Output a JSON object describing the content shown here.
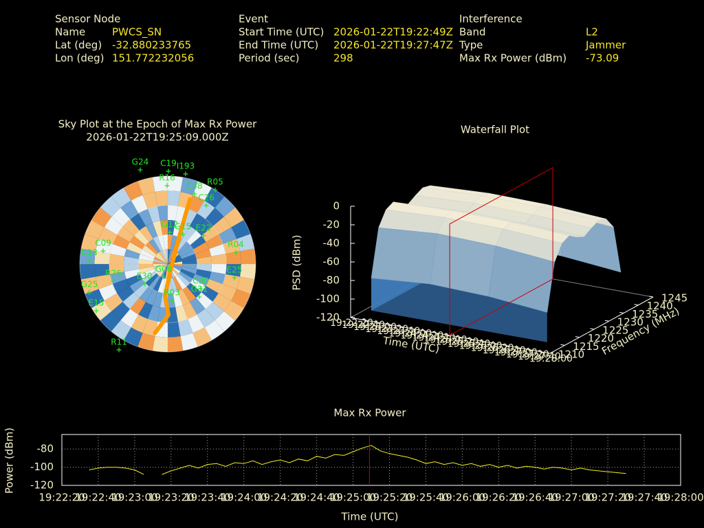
{
  "header": {
    "groups": [
      {
        "title": "Sensor Node",
        "rows": [
          [
            "Name",
            "PWCS_SN"
          ],
          [
            "Lat (deg)",
            "-32.880233765"
          ],
          [
            "Lon (deg)",
            "151.772232056"
          ]
        ]
      },
      {
        "title": "Event",
        "rows": [
          [
            "Start Time (UTC)",
            "2026-01-22T19:22:49Z"
          ],
          [
            "End Time (UTC)",
            "2026-01-22T19:27:47Z"
          ],
          [
            "Period (sec)",
            "298"
          ]
        ]
      },
      {
        "title": "Interference",
        "rows": [
          [
            "Band",
            "L2"
          ],
          [
            "Type",
            "Jammer"
          ],
          [
            "Max Rx Power (dBm)",
            "-73.09"
          ]
        ]
      }
    ]
  },
  "chart_data": [
    {
      "type": "polar",
      "title": "Sky Plot at the Epoch of Max Rx Power",
      "subtitle": "2026-01-22T19:25:09.000Z",
      "rlim": [
        90,
        0
      ],
      "label_color": "#22e622",
      "satellites": [
        {
          "name": "G24",
          "azimuth": 343.7,
          "elevation": -10.3
        },
        {
          "name": "C19",
          "azimuth": 0.4,
          "elevation": -4.9
        },
        {
          "name": "I193",
          "azimuth": 11.2,
          "elevation": -3.9
        },
        {
          "name": "R16",
          "azimuth": 359.5,
          "elevation": 9.8
        },
        {
          "name": "C48",
          "azimuth": 20.9,
          "elevation": 13.4
        },
        {
          "name": "R05",
          "azimuth": 32.6,
          "elevation": 0
        },
        {
          "name": "C26",
          "azimuth": 33.4,
          "elevation": 18.4
        },
        {
          "name": "E22",
          "azimuth": 51.7,
          "elevation": 43.4
        },
        {
          "name": "R04",
          "azimuth": 80.3,
          "elevation": 19.4
        },
        {
          "name": "E25",
          "azimuth": 101.7,
          "elevation": 20.4
        },
        {
          "name": "G12",
          "azimuth": 3.7,
          "elevation": 57.6
        },
        {
          "name": "G15",
          "azimuth": 27.1,
          "elevation": 56
        },
        {
          "name": "C09",
          "azimuth": 281.4,
          "elevation": 22.6
        },
        {
          "name": "C33",
          "azimuth": 272.5,
          "elevation": 9.8
        },
        {
          "name": "G25",
          "azimuth": 250.2,
          "elevation": 4.8
        },
        {
          "name": "E15",
          "azimuth": 236.8,
          "elevation": 2.6
        },
        {
          "name": "R11",
          "azimuth": 209.6,
          "elevation": -11
        },
        {
          "name": "G06",
          "azimuth": 197.5,
          "elevation": 76
        },
        {
          "name": "R03",
          "azimuth": 173.5,
          "elevation": 52.5
        },
        {
          "name": "G31",
          "azimuth": 136.2,
          "elevation": 43.3
        },
        {
          "name": "C30",
          "azimuth": 126.9,
          "elevation": 47.8
        },
        {
          "name": "R26",
          "azimuth": 252.4,
          "elevation": 31.7
        },
        {
          "name": "E30",
          "azimuth": 229.5,
          "elevation": 58.6
        }
      ],
      "track": {
        "color": "#ff9900",
        "azimuth": [
          19,
          19.9,
          22.2,
          99.5,
          185,
          179.2,
          190.6
        ],
        "elevation": [
          20,
          38.4,
          56.6,
          85.7,
          57.5,
          38,
          18
        ]
      }
    },
    {
      "type": "surface",
      "title": "Waterfall Plot",
      "xlabel": "Time (UTC)",
      "ylabel": "Frequency (MHz)",
      "zlabel": "PSD (dBm)",
      "x": [
        69750,
        69850,
        69950,
        70050
      ],
      "y": [
        1215,
        1217.5,
        1220,
        1222.5,
        1225,
        1227.5,
        1230,
        1232.5,
        1235,
        1237.5,
        1240
      ],
      "values": [
        [
          -85,
          -35,
          -20,
          -16,
          -22,
          -27,
          -22,
          -18,
          -20,
          -32,
          -85
        ],
        [
          -80,
          -30,
          -17,
          -14,
          -19,
          -24,
          -19,
          -15,
          -17,
          -28,
          -80
        ],
        [
          -82,
          -32,
          -18,
          -15,
          -20,
          -25,
          -20,
          -16,
          -18,
          -30,
          -82
        ],
        [
          -88,
          -38,
          -22,
          -18,
          -24,
          -28,
          -23,
          -19,
          -22,
          -35,
          -88
        ]
      ],
      "xlim": [
        69740,
        70080
      ],
      "xticks": [
        {
          "value": 69740,
          "label": "19:22:20"
        },
        {
          "value": 69760,
          "label": "19:22:40"
        },
        {
          "value": 69780,
          "label": "19:23:00"
        },
        {
          "value": 69800,
          "label": "19:23:20"
        },
        {
          "value": 69820,
          "label": "19:23:40"
        },
        {
          "value": 69840,
          "label": "19:24:00"
        },
        {
          "value": 69860,
          "label": "19:24:20"
        },
        {
          "value": 69880,
          "label": "19:24:40"
        },
        {
          "value": 69900,
          "label": "19:25:00"
        },
        {
          "value": 69920,
          "label": "19:25:20"
        },
        {
          "value": 69940,
          "label": "19:25:40"
        },
        {
          "value": 69960,
          "label": "19:26:00"
        },
        {
          "value": 69980,
          "label": "19:26:20"
        },
        {
          "value": 70000,
          "label": "19:26:40"
        },
        {
          "value": 70020,
          "label": "19:27:00"
        },
        {
          "value": 70040,
          "label": "19:27:20"
        },
        {
          "value": 70060,
          "label": "19:27:40"
        },
        {
          "value": 70080,
          "label": "19:28:00"
        }
      ],
      "ylim": [
        1210,
        1245
      ],
      "yticks": [
        1210,
        1215,
        1220,
        1225,
        1230,
        1235,
        1240,
        1245
      ],
      "zlim": [
        -120,
        0
      ],
      "zticks": [
        -120,
        -100,
        -80,
        -60,
        -40,
        -20,
        0
      ],
      "marker_x": 69909,
      "marker_color": "#cc0000"
    },
    {
      "type": "line",
      "title": "Max Rx Power",
      "xlabel": "Time (UTC)",
      "ylabel": "Power (dBm)",
      "color": "#f5f020",
      "x": [
        69755,
        69760,
        69765,
        69770,
        69775,
        69780,
        69785,
        69790,
        69795,
        69800,
        69805,
        69810,
        69815,
        69820,
        69825,
        69830,
        69835,
        69840,
        69845,
        69850,
        69855,
        69860,
        69865,
        69870,
        69875,
        69880,
        69885,
        69890,
        69895,
        69900,
        69905,
        69910,
        69915,
        69920,
        69925,
        69930,
        69935,
        69940,
        69945,
        69950,
        69955,
        69960,
        69965,
        69970,
        69975,
        69980,
        69985,
        69990,
        69995,
        70000,
        70005,
        70010,
        70015,
        70020,
        70025,
        70030,
        70035,
        70040,
        70045,
        70050
      ],
      "values": [
        -103,
        -101,
        -100,
        -100,
        -101,
        -103,
        -108,
        null,
        -108,
        -104,
        -101,
        -98,
        -101,
        -97,
        -96,
        -99,
        -95,
        -96,
        -93,
        -97,
        -94,
        -92,
        -95,
        -91,
        -93,
        -88,
        -90,
        -86,
        -87,
        -83,
        -79,
        -76,
        -82,
        -85,
        -87,
        -89,
        -92,
        -96,
        -94,
        -97,
        -95,
        -98,
        -96,
        -99,
        -97,
        -100,
        -98,
        -101,
        -99,
        -100,
        -102,
        -100,
        -101,
        -103,
        -101,
        -103,
        -104,
        -105,
        -106,
        -107
      ],
      "xlim": [
        69740,
        70080
      ],
      "xticks": [
        {
          "value": 69740,
          "label": "19:22:20"
        },
        {
          "value": 69760,
          "label": "19:22:40"
        },
        {
          "value": 69780,
          "label": "19:23:00"
        },
        {
          "value": 69800,
          "label": "19:23:20"
        },
        {
          "value": 69820,
          "label": "19:23:40"
        },
        {
          "value": 69840,
          "label": "19:24:00"
        },
        {
          "value": 69860,
          "label": "19:24:20"
        },
        {
          "value": 69880,
          "label": "19:24:40"
        },
        {
          "value": 69900,
          "label": "19:25:00"
        },
        {
          "value": 69920,
          "label": "19:25:20"
        },
        {
          "value": 69940,
          "label": "19:25:40"
        },
        {
          "value": 69960,
          "label": "19:26:00"
        },
        {
          "value": 69980,
          "label": "19:26:20"
        },
        {
          "value": 70000,
          "label": "19:26:40"
        },
        {
          "value": 70020,
          "label": "19:27:00"
        },
        {
          "value": 70040,
          "label": "19:27:20"
        },
        {
          "value": 70060,
          "label": "19:27:40"
        },
        {
          "value": 70080,
          "label": "19:28:00"
        }
      ],
      "ylim": [
        -120,
        -64
      ],
      "yticks": [
        -120,
        -100,
        -80
      ],
      "grid": true,
      "marker_x": 69909,
      "marker_color": "#cc0000"
    }
  ]
}
